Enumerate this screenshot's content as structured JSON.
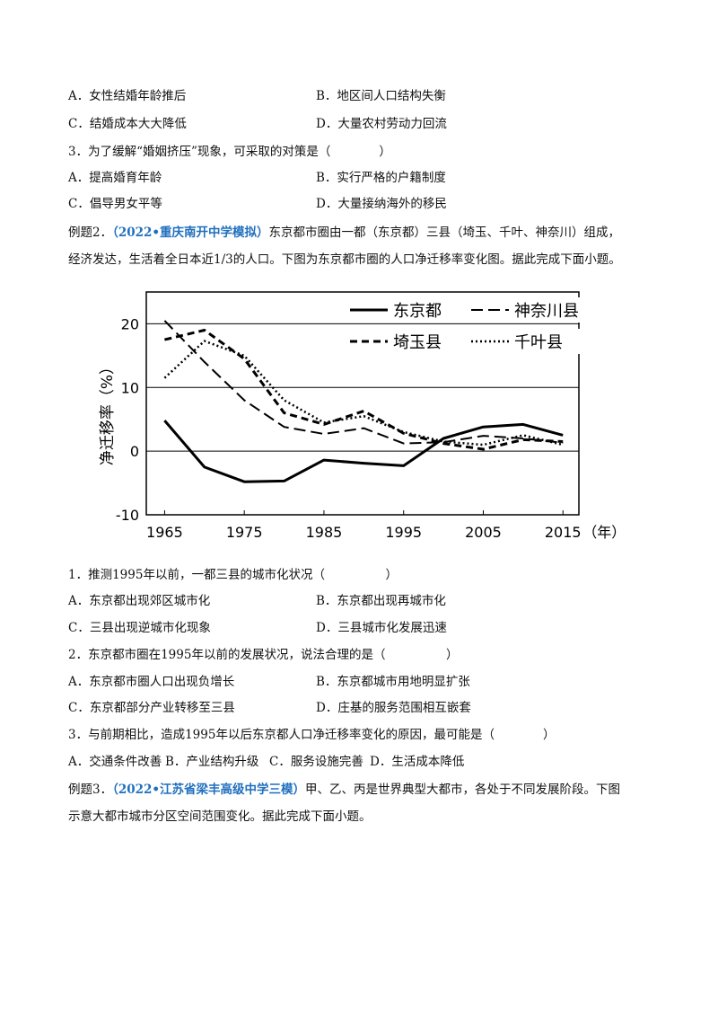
{
  "block1": {
    "options_top": [
      [
        "A．女性结婚年龄推后",
        "B．地区间人口结构失衡"
      ],
      [
        "C．结婚成本大大降低",
        "D．大量农村劳动力回流"
      ]
    ],
    "q3": "3．为了缓解“婚姻挤压”现象，可采取的对策是（　　　　）",
    "q3_options": [
      [
        "A．提高婚育年龄",
        "B．实行严格的户籍制度"
      ],
      [
        "C．倡导男女平等",
        "D．大量接纳海外的移民"
      ]
    ]
  },
  "example2": {
    "prefix": "例题2．",
    "source": "（2022•重庆南开中学模拟）",
    "text1": "东京都市圈由一都（东京都）三县（埼玉、千叶、神奈川）组成，",
    "text2": "经济发达，生活着全日本近1/3的人口。下图为东京都市圈的人口净迁移率变化图。据此完成下面小题。"
  },
  "chart_data": {
    "type": "line",
    "y_label": "净迁移率（%）",
    "x_label": "（年）",
    "x": [
      1965,
      1970,
      1975,
      1980,
      1985,
      1990,
      1995,
      2000,
      2005,
      2010,
      2015
    ],
    "series": [
      {
        "name": "东京都",
        "color": "#000000",
        "style": "solid",
        "values": [
          4.8,
          -2.5,
          -4.8,
          -4.7,
          -1.4,
          -1.9,
          -2.3,
          2.0,
          3.8,
          4.2,
          2.5
        ]
      },
      {
        "name": "神奈川县",
        "color": "#000000",
        "style": "longdash",
        "values": [
          20.5,
          14,
          8,
          3.8,
          2.7,
          3.6,
          1.2,
          1.4,
          2.4,
          2.0,
          1.3
        ]
      },
      {
        "name": "埼玉县",
        "color": "#000000",
        "style": "dash",
        "values": [
          17.5,
          19,
          14.5,
          6,
          4.2,
          6.3,
          2.8,
          1.2,
          0.3,
          1.8,
          1.5
        ]
      },
      {
        "name": "千叶县",
        "color": "#000000",
        "style": "dot",
        "values": [
          11.5,
          17.3,
          15,
          8,
          4.5,
          5.5,
          3,
          1.5,
          1.0,
          2.5,
          1.0
        ]
      }
    ],
    "xlim": [
      1962.7,
      2017
    ],
    "ylim": [
      -10,
      25
    ],
    "xticks": [
      1965,
      1975,
      1985,
      1995,
      2005,
      2015
    ],
    "yticks": [
      -10,
      0,
      10,
      20
    ],
    "grid": true,
    "legend": "top-right"
  },
  "questions": [
    {
      "stem": "1．推测1995年以前，一都三县的城市化状况（　　　　　）",
      "options": [
        [
          "A．东京都出现郊区城市化",
          "B．东京都出现再城市化"
        ],
        [
          "C．三县出现逆城市化现象",
          "D．三县城市化发展迅速"
        ]
      ]
    },
    {
      "stem": "2．东京都市圈在1995年以前的发展状况，说法合理的是（　　　　　）",
      "options": [
        [
          "A．东京都市圈人口出现负增长",
          "B．东京都城市用地明显扩张"
        ],
        [
          "C．东京都部分产业转移至三县",
          "D．庄基的服务范围相互嵌套"
        ]
      ]
    },
    {
      "stem": "3．与前期相比，造成1995年以后东京都人口净迁移率变化的原因，最可能是（　　　　）",
      "options": [
        [
          "A．交通条件改善",
          "B．产业结构升级",
          "C．服务设施完善",
          "D．生活成本降低"
        ]
      ]
    }
  ],
  "example3": {
    "prefix": "例题3．",
    "source": "（2022•江苏省梁丰高级中学三模）",
    "text1": "甲、乙、丙是世界典型大都市，各处于不同发展阶段。下图",
    "text2": "示意大都市城市分区空间范围变化。据此完成下面小题。"
  }
}
